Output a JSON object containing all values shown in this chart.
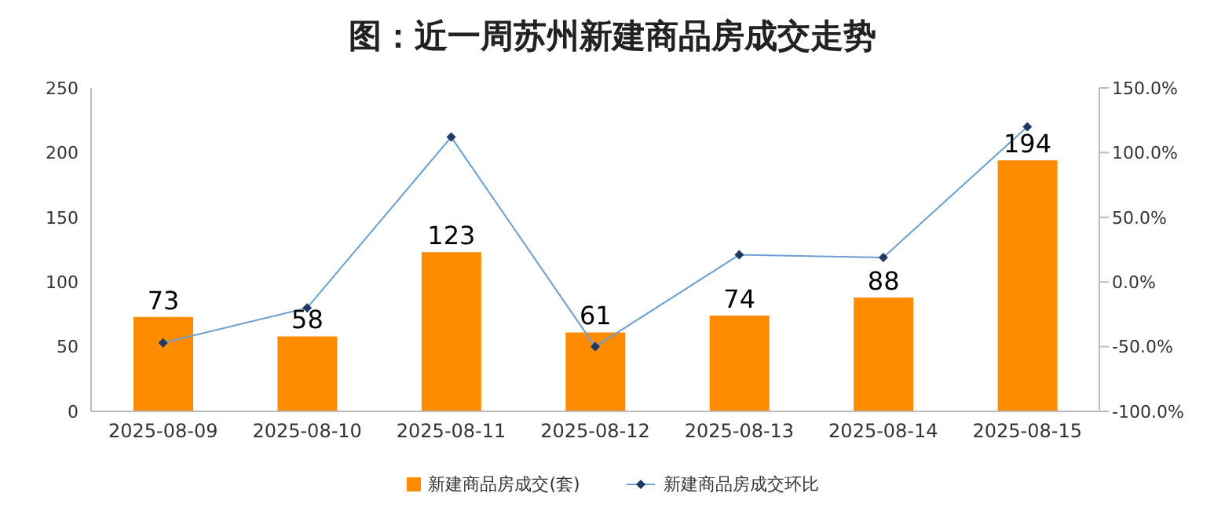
{
  "chart_data": {
    "type": "bar",
    "title": "图：近一周苏州新建商品房成交走势",
    "categories": [
      "2025-08-09",
      "2025-08-10",
      "2025-08-11",
      "2025-08-12",
      "2025-08-13",
      "2025-08-14",
      "2025-08-15"
    ],
    "series": [
      {
        "name": "新建商品房成交(套)",
        "color": "#ff8c00",
        "values": [
          73,
          58,
          123,
          61,
          74,
          88,
          194
        ],
        "value_labels": [
          "73",
          "58",
          "123",
          "61",
          "74",
          "88",
          "194"
        ]
      },
      {
        "name": "新建商品房成交环比",
        "type": "line",
        "axis": "y2",
        "color": "#6a9fd0",
        "values": [
          -47,
          -20,
          112,
          -50,
          21,
          19,
          120
        ]
      }
    ],
    "ylim": [
      0,
      250
    ],
    "yticks": [
      0,
      50,
      100,
      150,
      200,
      250
    ],
    "y2lim": [
      -100,
      150
    ],
    "y2ticks": [
      {
        "value": -100,
        "label": "-100.0%"
      },
      {
        "value": -50,
        "label": "-50.0%"
      },
      {
        "value": 0,
        "label": "0.0%"
      },
      {
        "value": 50,
        "label": "50.0%"
      },
      {
        "value": 100,
        "label": "100.0%"
      },
      {
        "value": 150,
        "label": "150.0%"
      }
    ],
    "grid": false,
    "legend": "bottom",
    "marker": "diamond",
    "line_style": "solid"
  }
}
